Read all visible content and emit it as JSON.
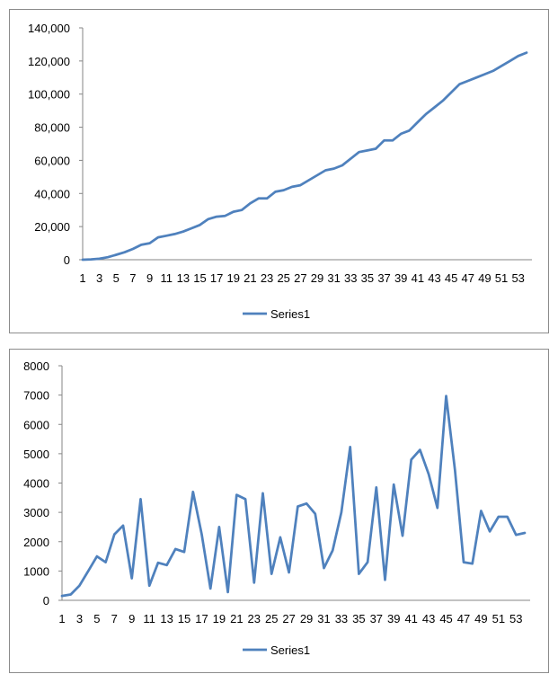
{
  "chart_data": [
    {
      "type": "line",
      "title": "",
      "xlabel": "",
      "ylabel": "",
      "ylim": [
        0,
        140000
      ],
      "yticks": [
        0,
        20000,
        40000,
        60000,
        80000,
        100000,
        120000,
        140000
      ],
      "ytick_labels": [
        "0",
        "20,000",
        "40,000",
        "60,000",
        "80,000",
        "100,000",
        "120,000",
        "140,000"
      ],
      "xtick_labels": [
        "1",
        "3",
        "5",
        "7",
        "9",
        "11",
        "13",
        "15",
        "17",
        "19",
        "21",
        "23",
        "25",
        "27",
        "29",
        "31",
        "33",
        "35",
        "37",
        "39",
        "41",
        "43",
        "45",
        "47",
        "49",
        "51",
        "53"
      ],
      "legend": "bottom",
      "color": "#4f81bd",
      "x": [
        1,
        2,
        3,
        4,
        5,
        6,
        7,
        8,
        9,
        10,
        11,
        12,
        13,
        14,
        15,
        16,
        17,
        18,
        19,
        20,
        21,
        22,
        23,
        24,
        25,
        26,
        27,
        28,
        29,
        30,
        31,
        32,
        33,
        34,
        35,
        36,
        37,
        38,
        39,
        40,
        41,
        42,
        43,
        44,
        45,
        46,
        47,
        48,
        49,
        50,
        51,
        52,
        53,
        54
      ],
      "series": [
        {
          "name": "Series1",
          "values": [
            0,
            200,
            600,
            1500,
            3000,
            4500,
            6500,
            9000,
            10000,
            13500,
            14500,
            15500,
            17000,
            19000,
            21000,
            24500,
            26000,
            26500,
            29000,
            30000,
            34000,
            37000,
            37000,
            41000,
            42000,
            44000,
            45000,
            48000,
            51000,
            54000,
            55000,
            57000,
            61000,
            65000,
            66000,
            67000,
            72000,
            72000,
            76000,
            78000,
            83000,
            88000,
            92000,
            96000,
            101000,
            106000,
            108000,
            110000,
            112000,
            114000,
            117000,
            120000,
            123000,
            125000
          ]
        }
      ]
    },
    {
      "type": "line",
      "title": "",
      "xlabel": "",
      "ylabel": "",
      "ylim": [
        0,
        8000
      ],
      "yticks": [
        0,
        1000,
        2000,
        3000,
        4000,
        5000,
        6000,
        7000,
        8000
      ],
      "ytick_labels": [
        "0",
        "1000",
        "2000",
        "3000",
        "4000",
        "5000",
        "6000",
        "7000",
        "8000"
      ],
      "xtick_labels": [
        "1",
        "3",
        "5",
        "7",
        "9",
        "11",
        "13",
        "15",
        "17",
        "19",
        "21",
        "23",
        "25",
        "27",
        "29",
        "31",
        "33",
        "35",
        "37",
        "39",
        "41",
        "43",
        "45",
        "47",
        "49",
        "51",
        "53"
      ],
      "legend": "bottom",
      "color": "#4f81bd",
      "x": [
        1,
        2,
        3,
        4,
        5,
        6,
        7,
        8,
        9,
        10,
        11,
        12,
        13,
        14,
        15,
        16,
        17,
        18,
        19,
        20,
        21,
        22,
        23,
        24,
        25,
        26,
        27,
        28,
        29,
        30,
        31,
        32,
        33,
        34,
        35,
        36,
        37,
        38,
        39,
        40,
        41,
        42,
        43,
        44,
        45,
        46,
        47,
        48,
        49,
        50,
        51,
        52,
        53,
        54
      ],
      "series": [
        {
          "name": "Series1",
          "values": [
            150,
            200,
            500,
            1000,
            1500,
            1300,
            2250,
            2550,
            750,
            3450,
            500,
            1280,
            1200,
            1750,
            1650,
            3700,
            2250,
            400,
            2500,
            280,
            3600,
            3450,
            600,
            3650,
            900,
            2150,
            950,
            3200,
            3300,
            2950,
            1100,
            1700,
            3000,
            5230,
            900,
            1300,
            3850,
            700,
            3950,
            2200,
            4800,
            5130,
            4300,
            3150,
            6970,
            4450,
            1300,
            1250,
            3050,
            2350,
            2850,
            2850,
            2230,
            2300
          ]
        }
      ]
    }
  ]
}
